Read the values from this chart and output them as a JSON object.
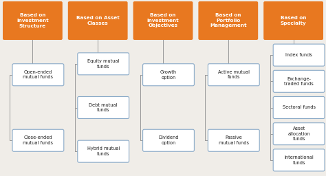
{
  "bg_color": "#f0ede8",
  "orange_color": "#E87820",
  "box_border_color": "#8AAAC8",
  "box_fill_color": "#FFFFFF",
  "text_color_orange": "#FFFFFF",
  "text_color_box": "#1a1a1a",
  "line_color": "#999999",
  "columns": [
    {
      "header": "Based on\nInvestment\nStructure",
      "items": [
        "Open-ended\nmutual funds",
        "Close-ended\nmutual funds"
      ]
    },
    {
      "header": "Based on Asset\nClasses",
      "items": [
        "Equity mutual\nfunds",
        "Debt mutual\nfunds",
        "Hybrid mutual\nfunds"
      ]
    },
    {
      "header": "Based on\nInvestment\nObjectives",
      "items": [
        "Growth\noption",
        "Dividend\noption"
      ]
    },
    {
      "header": "Based on\nPortfolio\nManagement",
      "items": [
        "Active mutual\nfunds",
        "Passive\nmutual funds"
      ]
    },
    {
      "header": "Based on\nSpecialty",
      "items": [
        "Index funds",
        "Exchange-\ntraded funds",
        "Sectoral funds",
        "Asset\nallocation\nfunds",
        "International\nfunds"
      ]
    }
  ],
  "figsize": [
    4.74,
    2.56
  ],
  "dpi": 100
}
